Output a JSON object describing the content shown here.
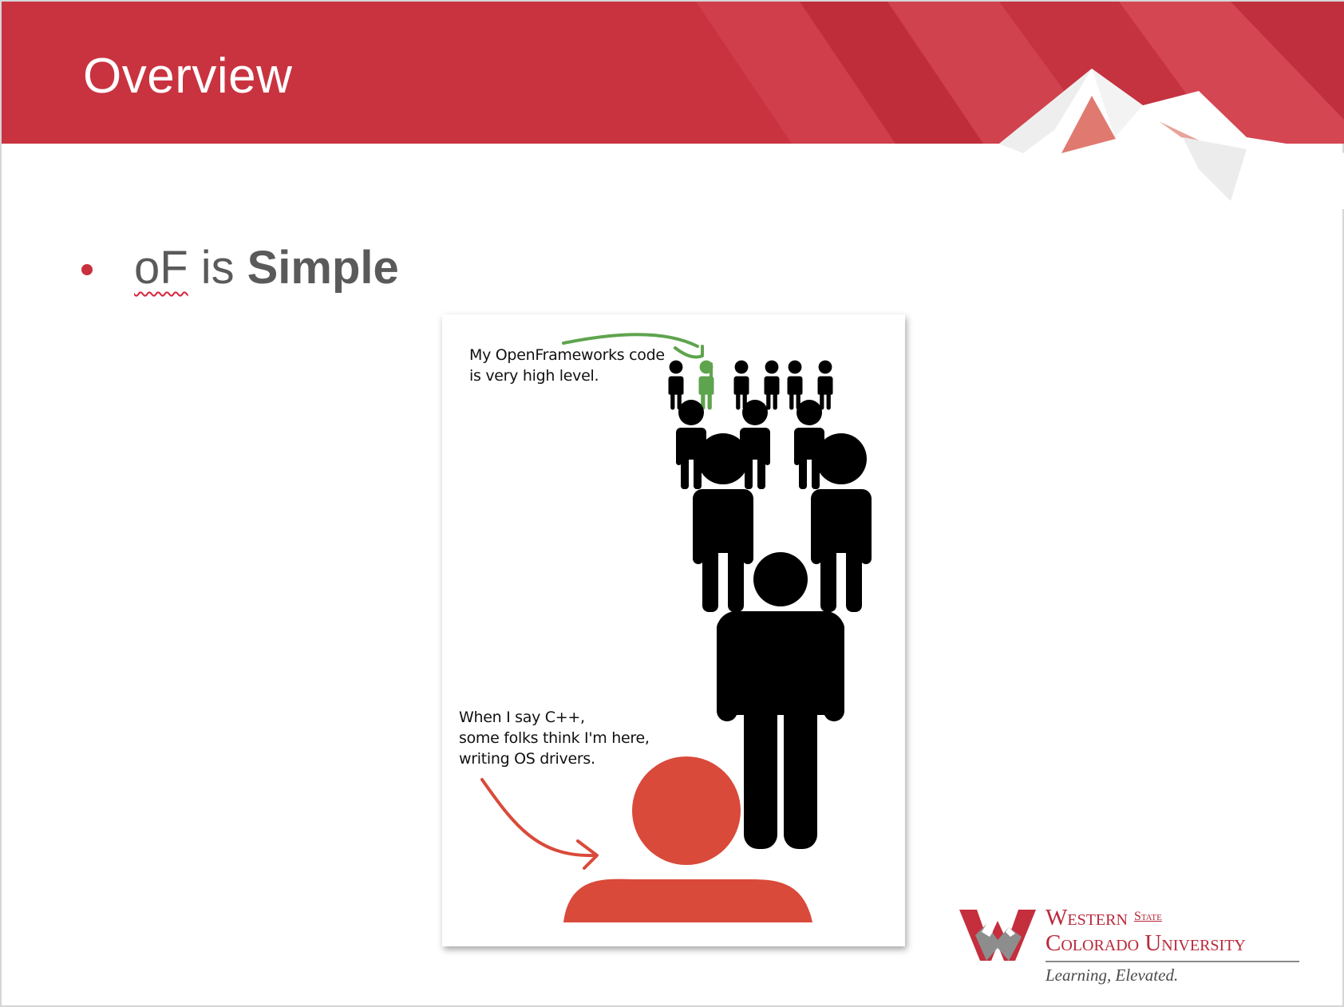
{
  "slide": {
    "title": "Overview",
    "bullet": {
      "word1": "oF",
      "word2": "is",
      "word3": "Simple"
    }
  },
  "comic": {
    "caption_top": [
      "My OpenFrameworks code",
      "is very high level."
    ],
    "caption_bottom": [
      "When I say C++,",
      "some folks think I'm here,",
      "writing OS drivers."
    ],
    "colors": {
      "figure": "#000000",
      "highlight": "#5ea44e",
      "low_level": "#d94a3a"
    }
  },
  "logo": {
    "line1": "Western",
    "line1_small": "State",
    "line2": "Colorado University",
    "tagline": "Learning, Elevated."
  },
  "theme": {
    "header_red": "#c93340",
    "bullet_color": "#c8303e",
    "text_gray": "#5a5a5a"
  }
}
